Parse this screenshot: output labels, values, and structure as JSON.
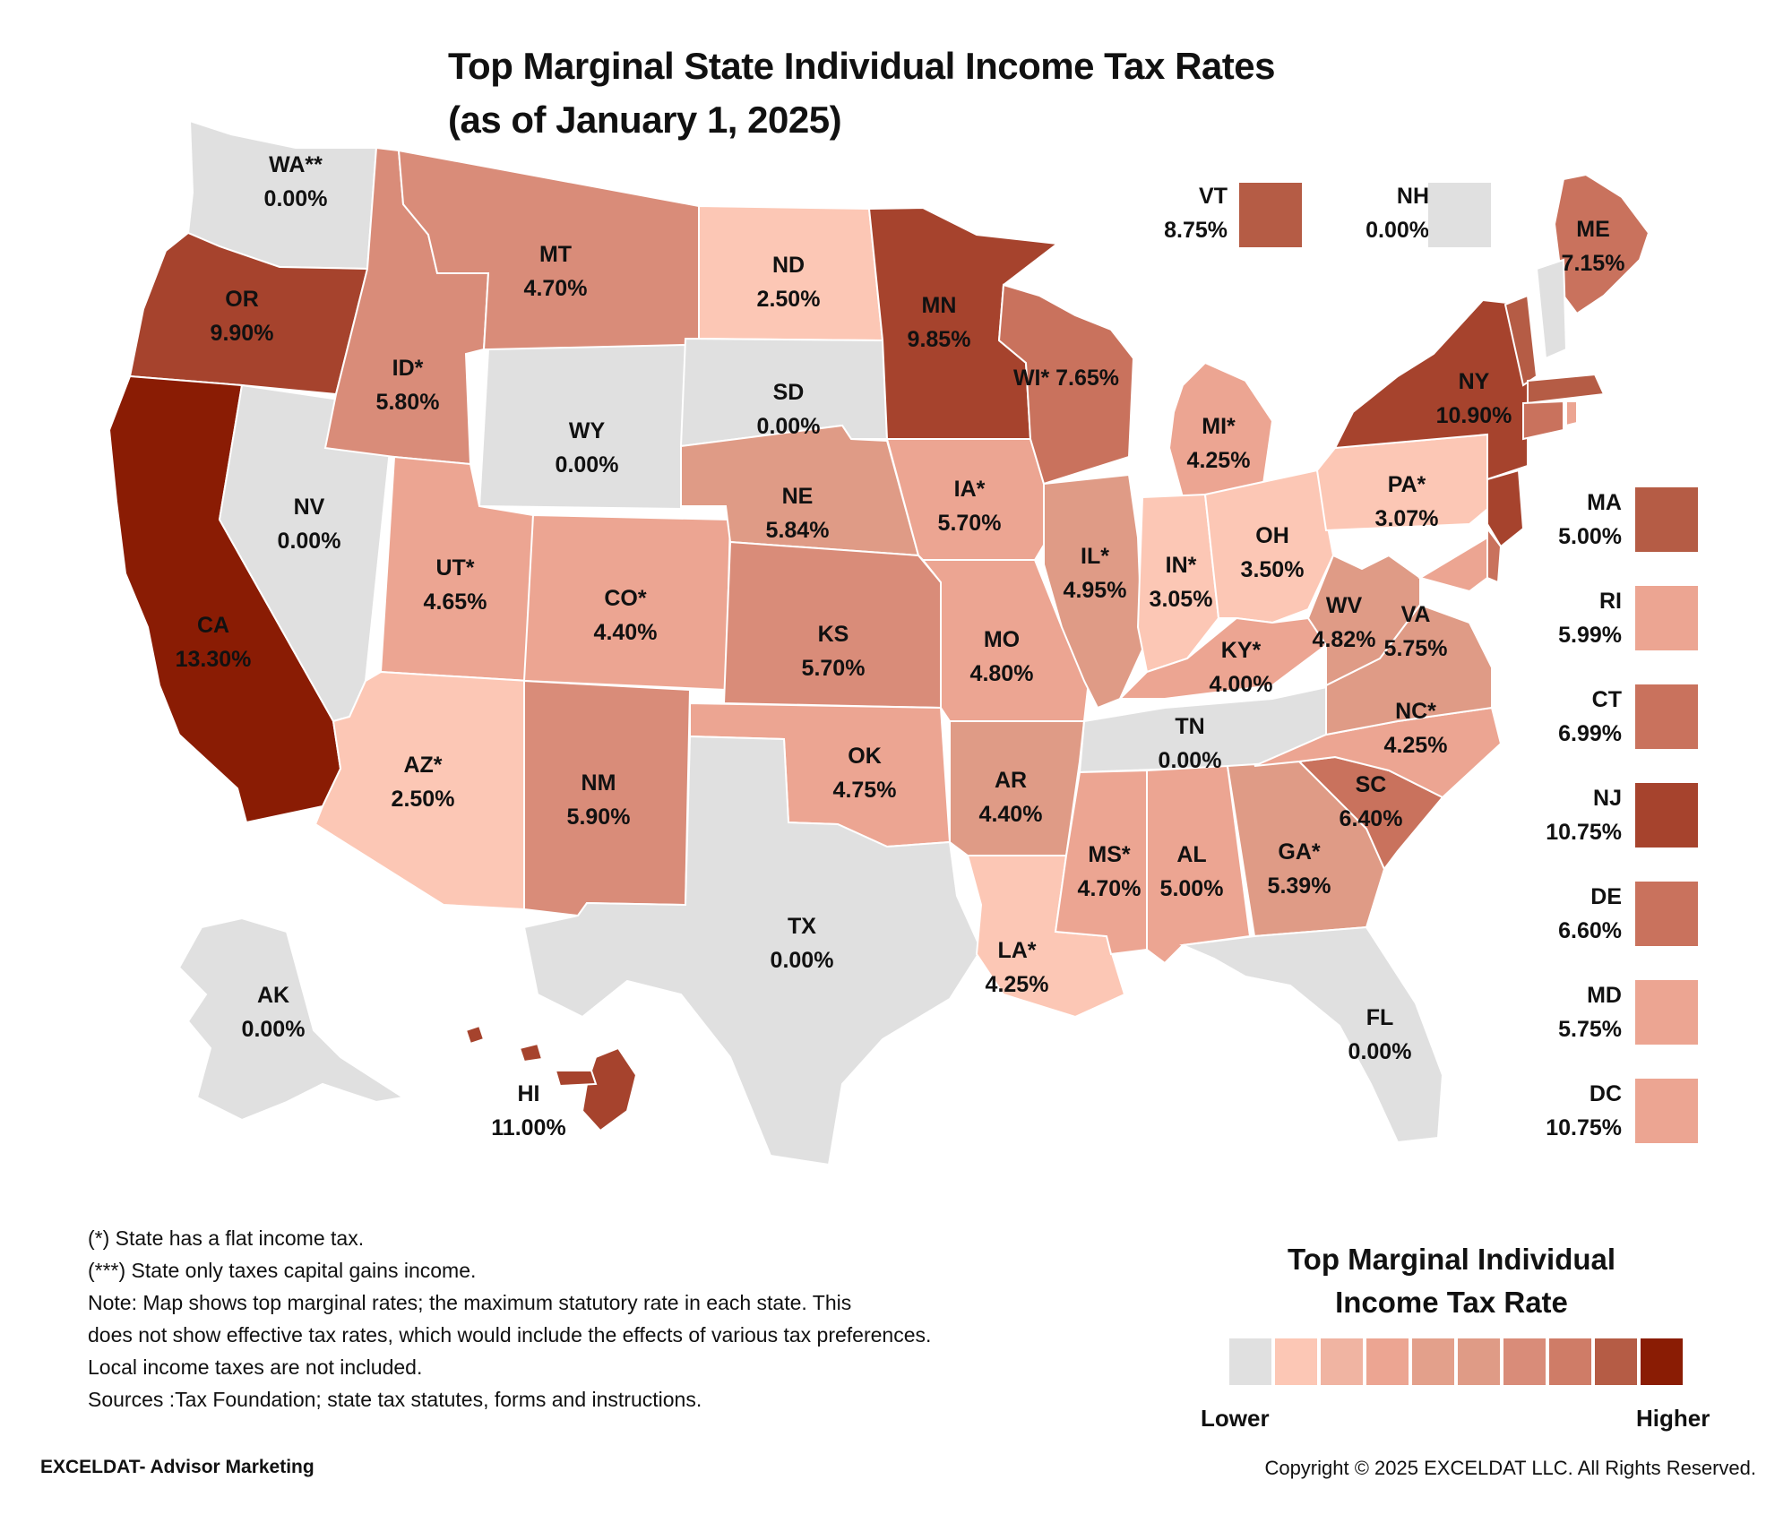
{
  "title": {
    "line1": "Top Marginal State Individual Income Tax Rates",
    "line2": "(as of January 1, 2025)"
  },
  "colors": {
    "zero": "#e0e0e0",
    "low": "#fcc7b5",
    "mid_low": "#eca592",
    "mid": "#df9b86",
    "mid_high": "#d98c79",
    "high": "#c9725d",
    "very_high": "#b55c45",
    "top": "#a6432d",
    "max": "#8a1c04"
  },
  "states": [
    {
      "abbr": "WA**",
      "rate": "0.00%",
      "color": "zero"
    },
    {
      "abbr": "OR",
      "rate": "9.90%",
      "color": "top"
    },
    {
      "abbr": "CA",
      "rate": "13.30%",
      "color": "max"
    },
    {
      "abbr": "NV",
      "rate": "0.00%",
      "color": "zero"
    },
    {
      "abbr": "ID*",
      "rate": "5.80%",
      "color": "mid_high"
    },
    {
      "abbr": "MT",
      "rate": "4.70%",
      "color": "mid_high"
    },
    {
      "abbr": "WY",
      "rate": "0.00%",
      "color": "zero"
    },
    {
      "abbr": "UT*",
      "rate": "4.65%",
      "color": "mid_low"
    },
    {
      "abbr": "AZ*",
      "rate": "2.50%",
      "color": "low"
    },
    {
      "abbr": "CO*",
      "rate": "4.40%",
      "color": "mid_low"
    },
    {
      "abbr": "NM",
      "rate": "5.90%",
      "color": "mid_high"
    },
    {
      "abbr": "ND",
      "rate": "2.50%",
      "color": "low"
    },
    {
      "abbr": "SD",
      "rate": "0.00%",
      "color": "zero"
    },
    {
      "abbr": "NE",
      "rate": "5.84%",
      "color": "mid"
    },
    {
      "abbr": "KS",
      "rate": "5.70%",
      "color": "mid_high"
    },
    {
      "abbr": "OK",
      "rate": "4.75%",
      "color": "mid_low"
    },
    {
      "abbr": "TX",
      "rate": "0.00%",
      "color": "zero"
    },
    {
      "abbr": "MN",
      "rate": "9.85%",
      "color": "top"
    },
    {
      "abbr": "IA*",
      "rate": "5.70%",
      "color": "mid_low"
    },
    {
      "abbr": "MO",
      "rate": "4.80%",
      "color": "mid_low"
    },
    {
      "abbr": "AR",
      "rate": "4.40%",
      "color": "mid"
    },
    {
      "abbr": "LA*",
      "rate": "4.25%",
      "color": "low"
    },
    {
      "abbr": "WI* 7.65%",
      "rate": "",
      "color": "high"
    },
    {
      "abbr": "IL*",
      "rate": "4.95%",
      "color": "mid"
    },
    {
      "abbr": "MI*",
      "rate": "4.25%",
      "color": "mid_low"
    },
    {
      "abbr": "IN*",
      "rate": "3.05%",
      "color": "low"
    },
    {
      "abbr": "OH",
      "rate": "3.50%",
      "color": "low"
    },
    {
      "abbr": "KY*",
      "rate": "4.00%",
      "color": "mid_low"
    },
    {
      "abbr": "TN",
      "rate": "0.00%",
      "color": "zero"
    },
    {
      "abbr": "MS*",
      "rate": "4.70%",
      "color": "mid_low"
    },
    {
      "abbr": "AL",
      "rate": "5.00%",
      "color": "mid_low"
    },
    {
      "abbr": "GA*",
      "rate": "5.39%",
      "color": "mid"
    },
    {
      "abbr": "FL",
      "rate": "0.00%",
      "color": "zero"
    },
    {
      "abbr": "SC",
      "rate": "6.40%",
      "color": "high"
    },
    {
      "abbr": "NC*",
      "rate": "4.25%",
      "color": "mid_low"
    },
    {
      "abbr": "VA",
      "rate": "5.75%",
      "color": "mid"
    },
    {
      "abbr": "WV",
      "rate": "4.82%",
      "color": "mid"
    },
    {
      "abbr": "PA*",
      "rate": "3.07%",
      "color": "low"
    },
    {
      "abbr": "NY",
      "rate": "10.90%",
      "color": "top"
    },
    {
      "abbr": "ME",
      "rate": "7.15%",
      "color": "high"
    },
    {
      "abbr": "AK",
      "rate": "0.00%",
      "color": "zero"
    },
    {
      "abbr": "HI",
      "rate": "11.00%",
      "color": "top"
    }
  ],
  "insets_top": [
    {
      "abbr": "VT",
      "rate": "8.75%",
      "color": "very_high"
    },
    {
      "abbr": "NH",
      "rate": "0.00%",
      "color": "zero"
    }
  ],
  "insets_side": [
    {
      "abbr": "MA",
      "rate": "5.00%",
      "color": "very_high"
    },
    {
      "abbr": "RI",
      "rate": "5.99%",
      "color": "mid_low"
    },
    {
      "abbr": "CT",
      "rate": "6.99%",
      "color": "high"
    },
    {
      "abbr": "NJ",
      "rate": "10.75%",
      "color": "top"
    },
    {
      "abbr": "DE",
      "rate": "6.60%",
      "color": "high"
    },
    {
      "abbr": "MD",
      "rate": "5.75%",
      "color": "mid_low"
    },
    {
      "abbr": "DC",
      "rate": "10.75%",
      "color": "mid_low"
    }
  ],
  "notes": [
    "(*) State has a flat income tax.",
    "(***) State only taxes capital gains income.",
    "Note: Map shows top marginal rates; the maximum statutory rate in each state. This",
    "does not show effective tax rates, which would include the effects of various tax preferences.",
    "Local income taxes are not included.",
    "Sources :Tax Foundation; state tax statutes, forms and instructions."
  ],
  "legend": {
    "title_line1": "Top Marginal Individual",
    "title_line2": "Income Tax Rate",
    "low_label": "Lower",
    "high_label": "Higher",
    "scale_colors": [
      "#e0e0e0",
      "#fcc7b5",
      "#f0b4a2",
      "#eca592",
      "#e3a08b",
      "#df9b86",
      "#d98c79",
      "#cf7c67",
      "#b55c45",
      "#8a1c04"
    ]
  },
  "footer": {
    "left": "EXCELDAT- Advisor Marketing",
    "right": "Copyright © 2025 EXCELDAT LLC. All Rights Reserved."
  }
}
